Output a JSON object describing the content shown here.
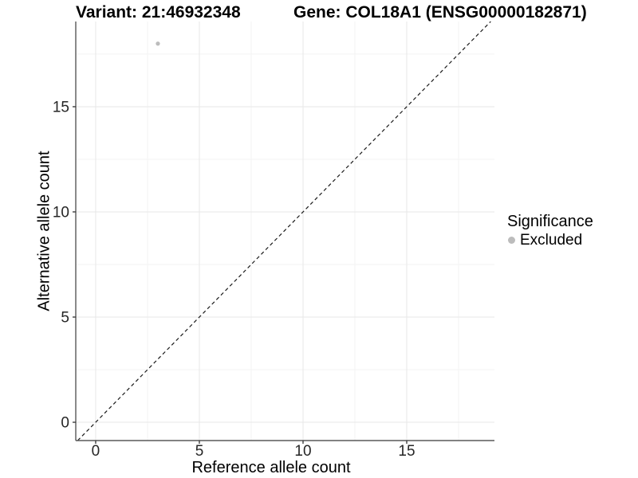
{
  "titles": {
    "variant": "Variant: 21:46932348",
    "gene": "Gene: COL18A1 (ENSG00000182871)"
  },
  "chart_data": {
    "type": "scatter",
    "title_left": "Variant: 21:46932348",
    "title_right": "Gene: COL18A1 (ENSG00000182871)",
    "xlabel": "Reference allele count",
    "ylabel": "Alternative allele count",
    "xlim": [
      -0.96,
      19.23
    ],
    "ylim": [
      -0.87,
      19.05
    ],
    "x_ticks": [
      0,
      5,
      10,
      15
    ],
    "y_ticks": [
      0,
      5,
      10,
      15
    ],
    "x_minor_ticks": [
      2.5,
      7.5,
      12.5,
      17.5
    ],
    "y_minor_ticks": [
      2.5,
      7.5,
      12.5,
      17.5
    ],
    "grid": true,
    "grid_major_color": "#e7e7e7",
    "grid_minor_color": "#f3f3f3",
    "axis_line_color": "#595959",
    "series": [
      {
        "name": "Excluded",
        "marker": "circle",
        "color": "#bcbcbc",
        "points": [
          {
            "x": 3,
            "y": 18
          }
        ]
      }
    ],
    "reference_line": {
      "type": "identity",
      "style": "dashed",
      "color": "#1a1a1a"
    },
    "legend": {
      "title": "Significance",
      "position": "right",
      "items": [
        {
          "label": "Excluded",
          "color": "#bcbcbc",
          "marker": "circle"
        }
      ]
    }
  }
}
